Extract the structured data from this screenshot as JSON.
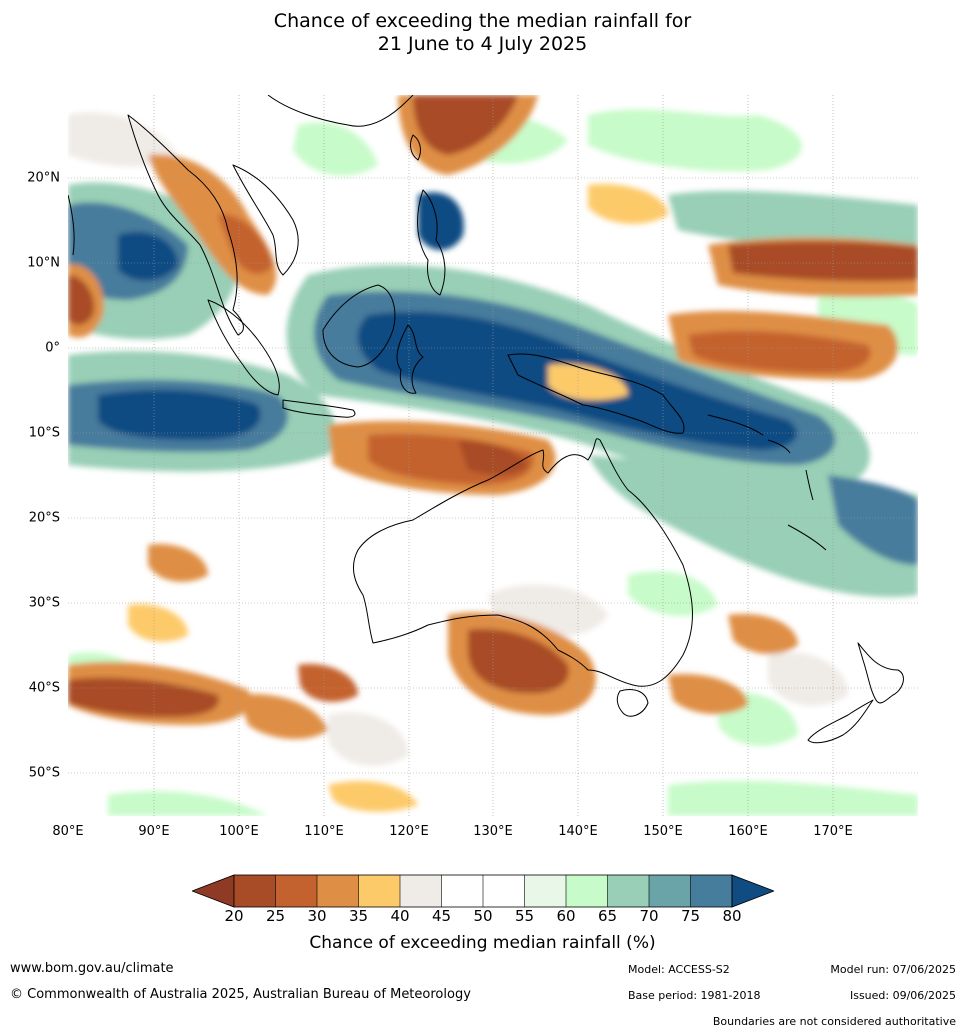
{
  "title_line1": "Chance of exceeding the median rainfall for",
  "title_line2": "21 June to 4 July 2025",
  "map": {
    "lon_ticks": [
      "80°E",
      "90°E",
      "100°E",
      "110°E",
      "120°E",
      "130°E",
      "140°E",
      "150°E",
      "160°E",
      "170°E"
    ],
    "lat_ticks": [
      "20°N",
      "10°N",
      "0°",
      "10°S",
      "20°S",
      "30°S",
      "40°S",
      "50°S"
    ],
    "colors": {
      "c20": "#8e3a24",
      "c25": "#a84b27",
      "c30": "#c4622f",
      "c35": "#df8f45",
      "c40": "#fdca6a",
      "c45": "#efebe6",
      "c50": "#ffffff",
      "c55": "#ffffff",
      "c60": "#e8f7e8",
      "c65": "#c7fbc9",
      "c70": "#98cfb6",
      "c75": "#6aa4a8",
      "c80": "#467c9c",
      "c85": "#104b82"
    }
  },
  "colorbar": {
    "ticks": [
      "20",
      "25",
      "30",
      "35",
      "40",
      "45",
      "50",
      "55",
      "60",
      "65",
      "70",
      "75",
      "80"
    ],
    "title": "Chance of exceeding median rainfall (%)"
  },
  "footer": {
    "website": "www.bom.gov.au/climate",
    "copyright": "© Commonwealth of Australia 2025, Australian Bureau of Meteorology",
    "model": "Model: ACCESS-S2",
    "base_period": "Base period: 1981-2018",
    "model_run": "Model run: 07/06/2025",
    "issued": "Issued: 09/06/2025",
    "boundaries": "Boundaries are not considered authoritative"
  }
}
